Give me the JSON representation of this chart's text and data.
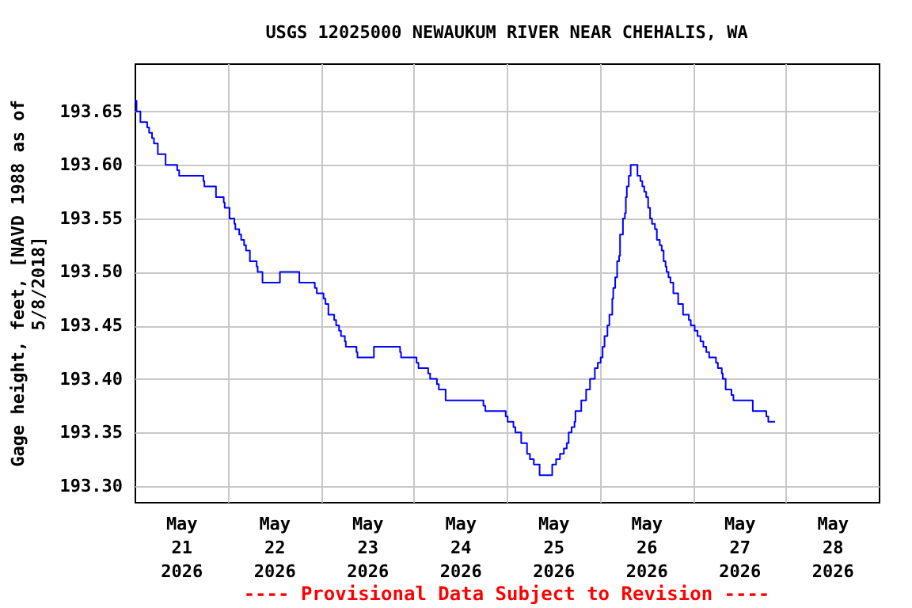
{
  "chart_data": {
    "type": "step",
    "title": "USGS 12025000 NEWAUKUM RIVER NEAR CHEHALIS, WA",
    "ylabel": "Gage height, feet, [NAVD 1988 as of\n5/8/2018]",
    "annotations": [
      "---- Provisional Data Subject to Revision ----"
    ],
    "x": [
      "2026-05-21T00:00",
      "2026-05-21T00:30",
      "2026-05-21T01:30",
      "2026-05-21T03:15",
      "2026-05-21T03:45",
      "2026-05-21T04:30",
      "2026-05-21T05:00",
      "2026-05-21T06:00",
      "2026-05-21T08:00",
      "2026-05-21T11:00",
      "2026-05-21T11:30",
      "2026-05-21T17:45",
      "2026-05-21T18:00",
      "2026-05-21T21:00",
      "2026-05-21T23:00",
      "2026-05-21T23:15",
      "2026-05-22T00:30",
      "2026-05-22T01:45",
      "2026-05-22T02:00",
      "2026-05-22T03:00",
      "2026-05-22T03:30",
      "2026-05-22T04:15",
      "2026-05-22T04:45",
      "2026-05-22T05:45",
      "2026-05-22T07:30",
      "2026-05-22T07:45",
      "2026-05-22T09:00",
      "2026-05-22T13:30",
      "2026-05-22T18:30",
      "2026-05-22T22:30",
      "2026-05-22T23:00",
      "2026-05-23T00:45",
      "2026-05-23T01:15",
      "2026-05-23T02:00",
      "2026-05-23T03:30",
      "2026-05-23T04:00",
      "2026-05-23T04:45",
      "2026-05-23T05:15",
      "2026-05-23T06:15",
      "2026-05-23T06:30",
      "2026-05-23T09:15",
      "2026-05-23T09:30",
      "2026-05-23T13:45",
      "2026-05-23T20:30",
      "2026-05-23T20:45",
      "2026-05-24T00:45",
      "2026-05-24T01:15",
      "2026-05-24T03:45",
      "2026-05-24T04:15",
      "2026-05-24T06:00",
      "2026-05-24T06:30",
      "2026-05-24T08:15",
      "2026-05-24T18:00",
      "2026-05-24T18:30",
      "2026-05-24T23:45",
      "2026-05-25T00:15",
      "2026-05-25T01:45",
      "2026-05-25T02:15",
      "2026-05-25T03:45",
      "2026-05-25T05:15",
      "2026-05-25T06:00",
      "2026-05-25T07:00",
      "2026-05-25T08:30",
      "2026-05-25T11:45",
      "2026-05-25T12:45",
      "2026-05-25T13:45",
      "2026-05-25T14:45",
      "2026-05-25T15:30",
      "2026-05-25T16:00",
      "2026-05-25T16:45",
      "2026-05-25T17:30",
      "2026-05-25T17:45",
      "2026-05-25T19:15",
      "2026-05-25T20:30",
      "2026-05-25T21:30",
      "2026-05-25T22:45",
      "2026-05-25T23:30",
      "2026-05-26T00:15",
      "2026-05-26T00:45",
      "2026-05-26T01:15",
      "2026-05-26T02:00",
      "2026-05-26T02:30",
      "2026-05-26T03:15",
      "2026-05-26T03:30",
      "2026-05-26T04:00",
      "2026-05-26T04:30",
      "2026-05-26T05:00",
      "2026-05-26T05:15",
      "2026-05-26T06:00",
      "2026-05-26T06:30",
      "2026-05-26T06:45",
      "2026-05-26T07:00",
      "2026-05-26T07:30",
      "2026-05-26T08:00",
      "2026-05-26T09:45",
      "2026-05-26T10:30",
      "2026-05-26T11:00",
      "2026-05-26T11:30",
      "2026-05-26T12:00",
      "2026-05-26T12:30",
      "2026-05-26T13:00",
      "2026-05-26T13:30",
      "2026-05-26T14:15",
      "2026-05-26T14:45",
      "2026-05-26T15:30",
      "2026-05-26T16:00",
      "2026-05-26T16:30",
      "2026-05-26T17:00",
      "2026-05-26T17:15",
      "2026-05-26T17:45",
      "2026-05-26T18:15",
      "2026-05-26T19:00",
      "2026-05-26T20:15",
      "2026-05-26T21:30",
      "2026-05-26T23:00",
      "2026-05-26T23:30",
      "2026-05-27T00:30",
      "2026-05-27T01:15",
      "2026-05-27T02:00",
      "2026-05-27T02:45",
      "2026-05-27T03:30",
      "2026-05-27T04:15",
      "2026-05-27T06:00",
      "2026-05-27T06:30",
      "2026-05-27T07:30",
      "2026-05-27T07:45",
      "2026-05-27T08:30",
      "2026-05-27T10:00",
      "2026-05-27T10:30",
      "2026-05-27T15:30",
      "2026-05-27T19:00",
      "2026-05-27T19:30",
      "2026-05-27T21:15"
    ],
    "series": [
      {
        "color": "#0000ff",
        "values": [
          193.66,
          193.65,
          193.64,
          193.635,
          193.63,
          193.625,
          193.62,
          193.61,
          193.6,
          193.595,
          193.59,
          193.585,
          193.58,
          193.57,
          193.565,
          193.56,
          193.55,
          193.545,
          193.54,
          193.535,
          193.53,
          193.525,
          193.52,
          193.51,
          193.505,
          193.5,
          193.49,
          193.5,
          193.49,
          193.485,
          193.48,
          193.475,
          193.47,
          193.46,
          193.455,
          193.45,
          193.445,
          193.44,
          193.435,
          193.43,
          193.425,
          193.42,
          193.43,
          193.425,
          193.42,
          193.415,
          193.41,
          193.405,
          193.4,
          193.395,
          193.39,
          193.38,
          193.375,
          193.37,
          193.365,
          193.36,
          193.355,
          193.35,
          193.34,
          193.33,
          193.325,
          193.32,
          193.31,
          193.32,
          193.325,
          193.33,
          193.335,
          193.34,
          193.35,
          193.355,
          193.36,
          193.37,
          193.38,
          193.39,
          193.4,
          193.41,
          193.415,
          193.42,
          193.43,
          193.44,
          193.45,
          193.46,
          193.475,
          193.485,
          193.495,
          193.51,
          193.515,
          193.535,
          193.55,
          193.555,
          193.57,
          193.58,
          193.59,
          193.6,
          193.59,
          193.585,
          193.58,
          193.575,
          193.57,
          193.56,
          193.55,
          193.545,
          193.54,
          193.53,
          193.525,
          193.52,
          193.51,
          193.505,
          193.5,
          193.495,
          193.49,
          193.48,
          193.47,
          193.46,
          193.455,
          193.45,
          193.445,
          193.44,
          193.435,
          193.43,
          193.425,
          193.42,
          193.415,
          193.41,
          193.405,
          193.4,
          193.39,
          193.385,
          193.38,
          193.37,
          193.365,
          193.36,
          193.36
        ]
      }
    ],
    "xlim": [
      "2026-05-21T00:00",
      "2026-05-29T00:00"
    ],
    "xticks": [
      {
        "value": "2026-05-21T12:00",
        "label": "May\n21\n2026"
      },
      {
        "value": "2026-05-22T12:00",
        "label": "May\n22\n2026"
      },
      {
        "value": "2026-05-23T12:00",
        "label": "May\n23\n2026"
      },
      {
        "value": "2026-05-24T12:00",
        "label": "May\n24\n2026"
      },
      {
        "value": "2026-05-25T12:00",
        "label": "May\n25\n2026"
      },
      {
        "value": "2026-05-26T12:00",
        "label": "May\n26\n2026"
      },
      {
        "value": "2026-05-27T12:00",
        "label": "May\n27\n2026"
      },
      {
        "value": "2026-05-28T12:00",
        "label": "May\n28\n2026"
      },
      {
        "value": "2026-05-22T00:00",
        "label": null
      },
      {
        "value": "2026-05-23T00:00",
        "label": null
      },
      {
        "value": "2026-05-24T00:00",
        "label": null
      },
      {
        "value": "2026-05-25T00:00",
        "label": null
      },
      {
        "value": "2026-05-26T00:00",
        "label": null
      },
      {
        "value": "2026-05-27T00:00",
        "label": null
      },
      {
        "value": "2026-05-28T00:00",
        "label": null
      }
    ],
    "ylim": [
      193.285,
      193.695
    ],
    "yticks": [
      {
        "value": 193.3,
        "label": "193.30"
      },
      {
        "value": 193.35,
        "label": "193.35"
      },
      {
        "value": 193.4,
        "label": "193.40"
      },
      {
        "value": 193.45,
        "label": "193.45"
      },
      {
        "value": 193.5,
        "label": "193.50"
      },
      {
        "value": 193.55,
        "label": "193.55"
      },
      {
        "value": 193.6,
        "label": "193.60"
      },
      {
        "value": 193.65,
        "label": "193.65"
      }
    ],
    "grid": true
  }
}
